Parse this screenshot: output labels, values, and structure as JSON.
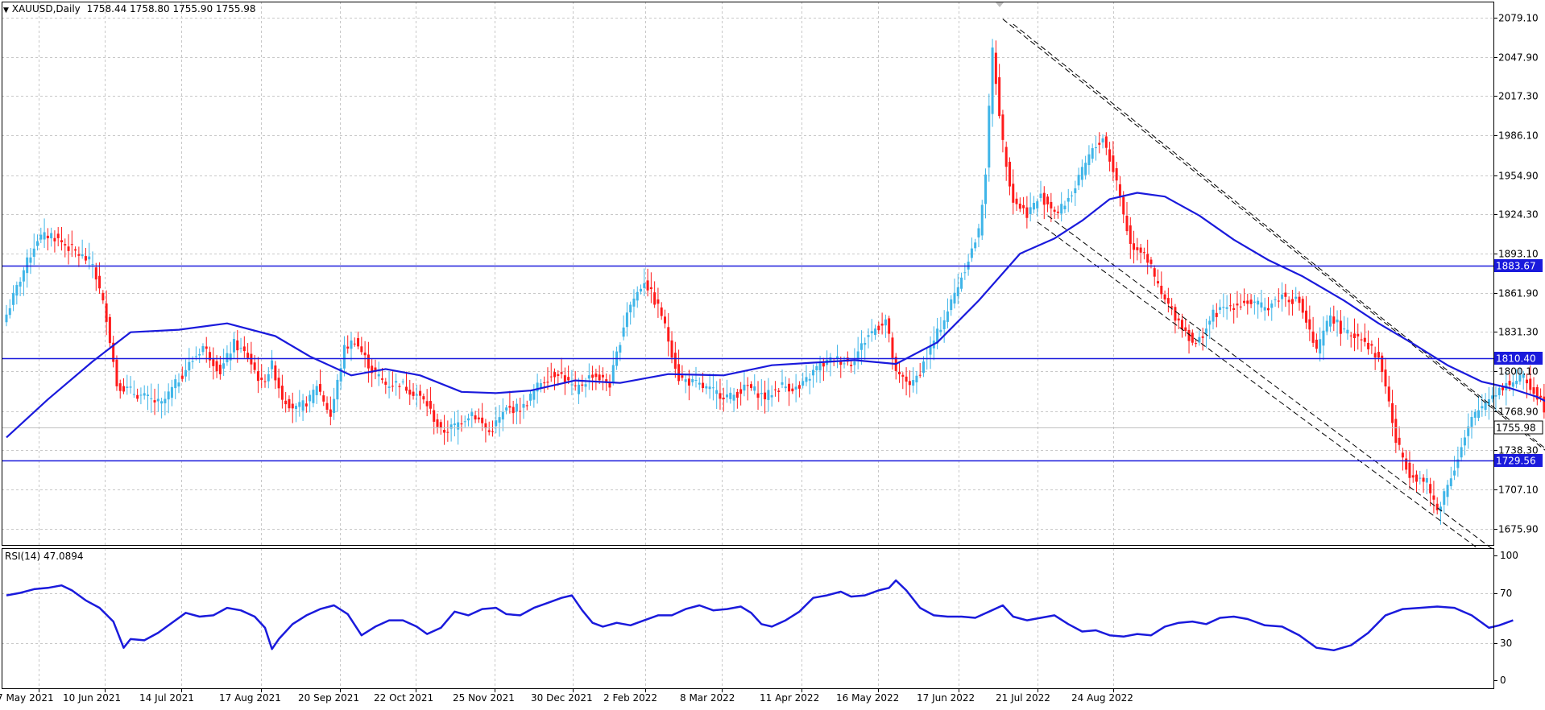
{
  "header": {
    "symbol": "XAUUSD,Daily",
    "ohlc": "1758.44 1758.80 1755.90 1755.98",
    "rsi_label": "RSI(14) 47.0894"
  },
  "colors": {
    "bull": "#3fb5e8",
    "bear": "#ff1a1a",
    "ma": "#1a1adc",
    "level": "#1a1adc",
    "rsi": "#1a1adc",
    "grid": "#c8c8c8",
    "frame": "#000000"
  },
  "chart_data": [
    {
      "type": "candlestick",
      "title": "XAUUSD,Daily",
      "ylim": [
        1661,
        2090
      ],
      "y_ticks": [
        "2079.10",
        "2047.90",
        "2017.30",
        "1986.10",
        "1954.90",
        "1924.30",
        "1893.10",
        "1861.90",
        "1831.30",
        "1800.10",
        "1768.90",
        "1738.30",
        "1707.10",
        "1675.90"
      ],
      "x_ticks": [
        "7 May 2021",
        "10 Jun 2021",
        "14 Jul 2021",
        "17 Aug 2021",
        "20 Sep 2021",
        "22 Oct 2021",
        "25 Nov 2021",
        "30 Dec 2021",
        "2 Feb 2022",
        "8 Mar 2022",
        "11 Apr 2022",
        "16 May 2022",
        "17 Jun 2022",
        "21 Jul 2022",
        "24 Aug 2022"
      ],
      "anchors": [
        [
          0,
          1845
        ],
        [
          5,
          1880
        ],
        [
          9,
          1905
        ],
        [
          13,
          1908
        ],
        [
          18,
          1898
        ],
        [
          25,
          1885
        ],
        [
          29,
          1843
        ],
        [
          32,
          1790
        ],
        [
          38,
          1782
        ],
        [
          45,
          1774
        ],
        [
          52,
          1802
        ],
        [
          57,
          1820
        ],
        [
          62,
          1800
        ],
        [
          66,
          1822
        ],
        [
          70,
          1812
        ],
        [
          74,
          1790
        ],
        [
          77,
          1805
        ],
        [
          80,
          1780
        ],
        [
          84,
          1770
        ],
        [
          88,
          1778
        ],
        [
          90,
          1790
        ],
        [
          94,
          1765
        ],
        [
          98,
          1818
        ],
        [
          101,
          1825
        ],
        [
          106,
          1801
        ],
        [
          110,
          1790
        ],
        [
          114,
          1791
        ],
        [
          119,
          1782
        ],
        [
          122,
          1774
        ],
        [
          126,
          1752
        ],
        [
          130,
          1757
        ],
        [
          135,
          1768
        ],
        [
          140,
          1752
        ],
        [
          145,
          1770
        ],
        [
          150,
          1772
        ],
        [
          155,
          1792
        ],
        [
          160,
          1800
        ],
        [
          165,
          1785
        ],
        [
          170,
          1798
        ],
        [
          175,
          1790
        ],
        [
          180,
          1848
        ],
        [
          185,
          1872
        ],
        [
          190,
          1845
        ],
        [
          195,
          1795
        ],
        [
          200,
          1790
        ],
        [
          205,
          1784
        ],
        [
          210,
          1780
        ],
        [
          215,
          1788
        ],
        [
          220,
          1780
        ],
        [
          225,
          1789
        ],
        [
          230,
          1786
        ],
        [
          235,
          1803
        ],
        [
          240,
          1810
        ],
        [
          245,
          1807
        ],
        [
          250,
          1829
        ],
        [
          255,
          1841
        ],
        [
          258,
          1797
        ],
        [
          263,
          1790
        ],
        [
          268,
          1818
        ],
        [
          273,
          1848
        ],
        [
          277,
          1875
        ],
        [
          282,
          1910
        ],
        [
          284,
          1958
        ],
        [
          286,
          2054
        ],
        [
          289,
          1980
        ],
        [
          292,
          1935
        ],
        [
          296,
          1925
        ],
        [
          300,
          1938
        ],
        [
          305,
          1925
        ],
        [
          310,
          1945
        ],
        [
          314,
          1970
        ],
        [
          318,
          1985
        ],
        [
          322,
          1950
        ],
        [
          326,
          1900
        ],
        [
          330,
          1895
        ],
        [
          335,
          1860
        ],
        [
          340,
          1840
        ],
        [
          345,
          1820
        ],
        [
          350,
          1845
        ],
        [
          355,
          1852
        ],
        [
          360,
          1855
        ],
        [
          365,
          1850
        ],
        [
          370,
          1860
        ],
        [
          375,
          1855
        ],
        [
          380,
          1815
        ],
        [
          384,
          1845
        ],
        [
          388,
          1830
        ],
        [
          393,
          1828
        ],
        [
          398,
          1810
        ],
        [
          400,
          1790
        ],
        [
          403,
          1745
        ],
        [
          407,
          1720
        ],
        [
          412,
          1712
        ],
        [
          415,
          1690
        ],
        [
          420,
          1725
        ],
        [
          425,
          1762
        ],
        [
          430,
          1780
        ],
        [
          435,
          1790
        ],
        [
          440,
          1795
        ],
        [
          445,
          1778
        ],
        [
          449,
          1752
        ],
        [
          451,
          1738
        ],
        [
          454,
          1758
        ]
      ],
      "ma_points": [
        [
          0,
          1748
        ],
        [
          12,
          1778
        ],
        [
          25,
          1808
        ],
        [
          36,
          1831
        ],
        [
          50,
          1833
        ],
        [
          64,
          1838
        ],
        [
          78,
          1828
        ],
        [
          88,
          1812
        ],
        [
          100,
          1797
        ],
        [
          110,
          1802
        ],
        [
          120,
          1797
        ],
        [
          132,
          1784
        ],
        [
          142,
          1783
        ],
        [
          152,
          1785
        ],
        [
          165,
          1793
        ],
        [
          178,
          1791
        ],
        [
          192,
          1798
        ],
        [
          208,
          1797
        ],
        [
          222,
          1805
        ],
        [
          234,
          1807
        ],
        [
          246,
          1809
        ],
        [
          258,
          1806
        ],
        [
          270,
          1823
        ],
        [
          282,
          1856
        ],
        [
          294,
          1893
        ],
        [
          304,
          1905
        ],
        [
          312,
          1919
        ],
        [
          320,
          1936
        ],
        [
          328,
          1941
        ],
        [
          336,
          1938
        ],
        [
          346,
          1923
        ],
        [
          356,
          1904
        ],
        [
          366,
          1888
        ],
        [
          376,
          1875
        ],
        [
          388,
          1856
        ],
        [
          398,
          1838
        ],
        [
          408,
          1822
        ],
        [
          418,
          1805
        ],
        [
          428,
          1792
        ],
        [
          436,
          1787
        ],
        [
          444,
          1780
        ],
        [
          452,
          1769
        ]
      ],
      "levels": [
        {
          "value": 1883.67,
          "label": "1883.67"
        },
        {
          "value": 1810.4,
          "label": "1810.40"
        },
        {
          "value": 1729.56,
          "label": "1729.56"
        }
      ],
      "last_price": {
        "value": 1755.98,
        "label": "1755.98"
      },
      "channel_lines": [
        [
          [
            289,
            2078
          ],
          [
            450,
            1730
          ],
          [
            489,
            1660
          ]
        ],
        [
          [
            292,
            2074
          ],
          [
            453,
            1725
          ],
          [
            492,
            1660
          ]
        ],
        [
          [
            299,
            1918
          ],
          [
            427,
            1660
          ]
        ],
        [
          [
            302,
            1923
          ],
          [
            431,
            1660
          ]
        ]
      ],
      "arrow_path": [
        [
          460,
          1753
        ],
        [
          463,
          1770
        ],
        [
          465,
          1775
        ],
        [
          469,
          1789
        ],
        [
          473,
          1779
        ],
        [
          477,
          1769
        ],
        [
          480,
          1790
        ],
        [
          482,
          1810
        ]
      ],
      "arrow_tip": [
        [
          480,
          1805
        ],
        [
          482,
          1810
        ],
        [
          485,
          1805
        ]
      ]
    },
    {
      "type": "line",
      "title": "RSI(14)",
      "ylim": [
        0,
        100
      ],
      "y_ticks": [
        100,
        70,
        30,
        0
      ],
      "points": [
        [
          0,
          68
        ],
        [
          4,
          70
        ],
        [
          8,
          73
        ],
        [
          12,
          74
        ],
        [
          16,
          76
        ],
        [
          19,
          72
        ],
        [
          23,
          64
        ],
        [
          27,
          58
        ],
        [
          31,
          47
        ],
        [
          34,
          26
        ],
        [
          36,
          33
        ],
        [
          40,
          32
        ],
        [
          44,
          38
        ],
        [
          48,
          46
        ],
        [
          52,
          54
        ],
        [
          56,
          51
        ],
        [
          60,
          52
        ],
        [
          64,
          58
        ],
        [
          68,
          56
        ],
        [
          72,
          51
        ],
        [
          75,
          42
        ],
        [
          77,
          25
        ],
        [
          79,
          33
        ],
        [
          83,
          45
        ],
        [
          87,
          52
        ],
        [
          91,
          57
        ],
        [
          95,
          60
        ],
        [
          99,
          53
        ],
        [
          103,
          36
        ],
        [
          107,
          43
        ],
        [
          111,
          48
        ],
        [
          115,
          48
        ],
        [
          119,
          43
        ],
        [
          122,
          37
        ],
        [
          126,
          42
        ],
        [
          130,
          55
        ],
        [
          134,
          52
        ],
        [
          138,
          57
        ],
        [
          142,
          58
        ],
        [
          145,
          53
        ],
        [
          149,
          52
        ],
        [
          153,
          58
        ],
        [
          157,
          62
        ],
        [
          161,
          66
        ],
        [
          164,
          68
        ],
        [
          167,
          56
        ],
        [
          170,
          46
        ],
        [
          173,
          43
        ],
        [
          177,
          46
        ],
        [
          181,
          44
        ],
        [
          185,
          48
        ],
        [
          189,
          52
        ],
        [
          193,
          52
        ],
        [
          197,
          57
        ],
        [
          201,
          60
        ],
        [
          205,
          56
        ],
        [
          209,
          57
        ],
        [
          213,
          59
        ],
        [
          216,
          54
        ],
        [
          219,
          45
        ],
        [
          222,
          43
        ],
        [
          226,
          48
        ],
        [
          230,
          55
        ],
        [
          234,
          66
        ],
        [
          238,
          68
        ],
        [
          242,
          71
        ],
        [
          245,
          67
        ],
        [
          249,
          68
        ],
        [
          253,
          72
        ],
        [
          256,
          74
        ],
        [
          258,
          80
        ],
        [
          261,
          72
        ],
        [
          265,
          58
        ],
        [
          269,
          52
        ],
        [
          273,
          51
        ],
        [
          277,
          51
        ],
        [
          281,
          50
        ],
        [
          285,
          55
        ],
        [
          289,
          60
        ],
        [
          292,
          51
        ],
        [
          296,
          48
        ],
        [
          300,
          50
        ],
        [
          304,
          52
        ],
        [
          308,
          45
        ],
        [
          312,
          39
        ],
        [
          316,
          40
        ],
        [
          320,
          36
        ],
        [
          324,
          35
        ],
        [
          328,
          37
        ],
        [
          332,
          36
        ],
        [
          336,
          43
        ],
        [
          340,
          46
        ],
        [
          344,
          47
        ],
        [
          348,
          45
        ],
        [
          352,
          50
        ],
        [
          356,
          51
        ],
        [
          360,
          49
        ],
        [
          365,
          44
        ],
        [
          370,
          43
        ],
        [
          375,
          36
        ],
        [
          380,
          26
        ],
        [
          385,
          24
        ],
        [
          390,
          28
        ],
        [
          395,
          38
        ],
        [
          400,
          52
        ],
        [
          405,
          57
        ],
        [
          410,
          58
        ],
        [
          415,
          59
        ],
        [
          420,
          58
        ],
        [
          425,
          52
        ],
        [
          430,
          42
        ],
        [
          433,
          44
        ],
        [
          437,
          48
        ]
      ]
    }
  ]
}
